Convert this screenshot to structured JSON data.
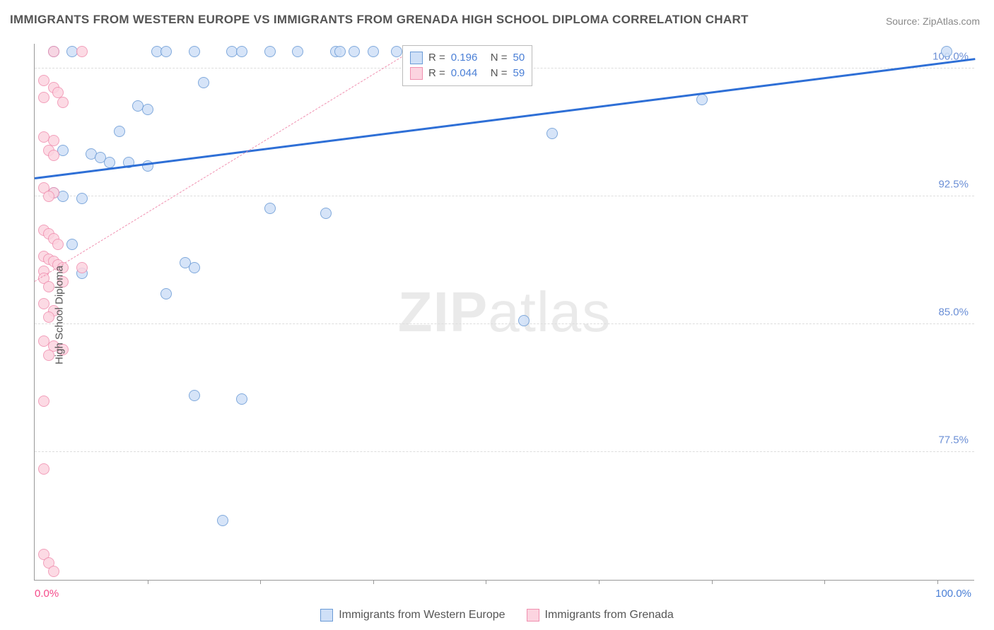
{
  "title": "IMMIGRANTS FROM WESTERN EUROPE VS IMMIGRANTS FROM GRENADA HIGH SCHOOL DIPLOMA CORRELATION CHART",
  "source": "Source: ZipAtlas.com",
  "ylabel": "High School Diploma",
  "watermark_bold": "ZIP",
  "watermark_light": "atlas",
  "chart": {
    "type": "scatter",
    "xlim": [
      0,
      100
    ],
    "ylim": [
      70,
      101.5
    ],
    "x_start_label": "0.0%",
    "x_end_label": "100.0%",
    "x_start_color": "#f54b8a",
    "x_end_color": "#4a7fd6",
    "xtick_positions": [
      12,
      24,
      36,
      48,
      60,
      72,
      84,
      96
    ],
    "yticks": [
      {
        "v": 100.0,
        "label": "100.0%"
      },
      {
        "v": 92.5,
        "label": "92.5%"
      },
      {
        "v": 85.0,
        "label": "85.0%"
      },
      {
        "v": 77.5,
        "label": "77.5%"
      }
    ],
    "ytick_color": "#6b8fd6",
    "grid_color": "#dddddd",
    "background_color": "#ffffff",
    "marker_radius": 8,
    "marker_border_width": 1.5,
    "series": [
      {
        "name": "Immigrants from Western Europe",
        "fill": "#cfe0f7",
        "stroke": "#6b9bd6",
        "trend_color": "#2e6fd6",
        "trend_width": 3,
        "trend_dash": "solid",
        "R": "0.196",
        "N": "50",
        "trend": {
          "x1": 0,
          "y1": 93.5,
          "x2": 100,
          "y2": 100.5
        },
        "points": [
          [
            2,
            101
          ],
          [
            4,
            101
          ],
          [
            13,
            101
          ],
          [
            14,
            101
          ],
          [
            17,
            101
          ],
          [
            21,
            101
          ],
          [
            22,
            101
          ],
          [
            25,
            101
          ],
          [
            28,
            101
          ],
          [
            32,
            101
          ],
          [
            32.5,
            101
          ],
          [
            34,
            101
          ],
          [
            36,
            101
          ],
          [
            38.5,
            101
          ],
          [
            97,
            101
          ],
          [
            18,
            99.2
          ],
          [
            71,
            98.2
          ],
          [
            11,
            97.8
          ],
          [
            12,
            97.6
          ],
          [
            55,
            96.2
          ],
          [
            9,
            96.3
          ],
          [
            3,
            95.2
          ],
          [
            6,
            95
          ],
          [
            7,
            94.8
          ],
          [
            8,
            94.5
          ],
          [
            10,
            94.5
          ],
          [
            12,
            94.3
          ],
          [
            2,
            92.7
          ],
          [
            3,
            92.5
          ],
          [
            5,
            92.4
          ],
          [
            25,
            91.8
          ],
          [
            31,
            91.5
          ],
          [
            4,
            89.7
          ],
          [
            16,
            88.6
          ],
          [
            17,
            88.3
          ],
          [
            5,
            88
          ],
          [
            14,
            86.8
          ],
          [
            52,
            85.2
          ],
          [
            17,
            80.8
          ],
          [
            22,
            80.6
          ],
          [
            20,
            73.5
          ]
        ]
      },
      {
        "name": "Immigrants from Grenada",
        "fill": "#fcd4e0",
        "stroke": "#f090b0",
        "trend_color": "#f090b0",
        "trend_width": 1.5,
        "trend_dash": "dashed",
        "R": "0.044",
        "N": "59",
        "trend": {
          "x1": 0,
          "y1": 87.5,
          "x2": 40,
          "y2": 101
        },
        "points": [
          [
            2,
            101
          ],
          [
            5,
            101
          ],
          [
            1,
            99.3
          ],
          [
            2,
            98.9
          ],
          [
            2.5,
            98.6
          ],
          [
            1,
            98.3
          ],
          [
            3,
            98
          ],
          [
            1,
            96
          ],
          [
            2,
            95.8
          ],
          [
            1.5,
            95.2
          ],
          [
            2,
            94.9
          ],
          [
            1,
            93
          ],
          [
            2,
            92.7
          ],
          [
            1.5,
            92.5
          ],
          [
            1,
            90.5
          ],
          [
            1.5,
            90.3
          ],
          [
            2,
            90
          ],
          [
            2.5,
            89.7
          ],
          [
            1,
            89
          ],
          [
            1.5,
            88.8
          ],
          [
            2,
            88.7
          ],
          [
            2.5,
            88.5
          ],
          [
            3,
            88.3
          ],
          [
            1,
            88.1
          ],
          [
            5,
            88.3
          ],
          [
            1,
            87.7
          ],
          [
            3,
            87.5
          ],
          [
            1.5,
            87.2
          ],
          [
            1,
            86.2
          ],
          [
            2,
            85.8
          ],
          [
            1.5,
            85.4
          ],
          [
            1,
            84
          ],
          [
            2,
            83.7
          ],
          [
            3,
            83.5
          ],
          [
            1.5,
            83.2
          ],
          [
            1,
            80.5
          ],
          [
            1,
            76.5
          ],
          [
            1,
            71.5
          ],
          [
            1.5,
            71
          ],
          [
            2,
            70.5
          ]
        ]
      }
    ]
  },
  "legend": {
    "R_label": "R =",
    "N_label": "N ="
  },
  "bottom_legend_labels": [
    "Immigrants from Western Europe",
    "Immigrants from Grenada"
  ]
}
